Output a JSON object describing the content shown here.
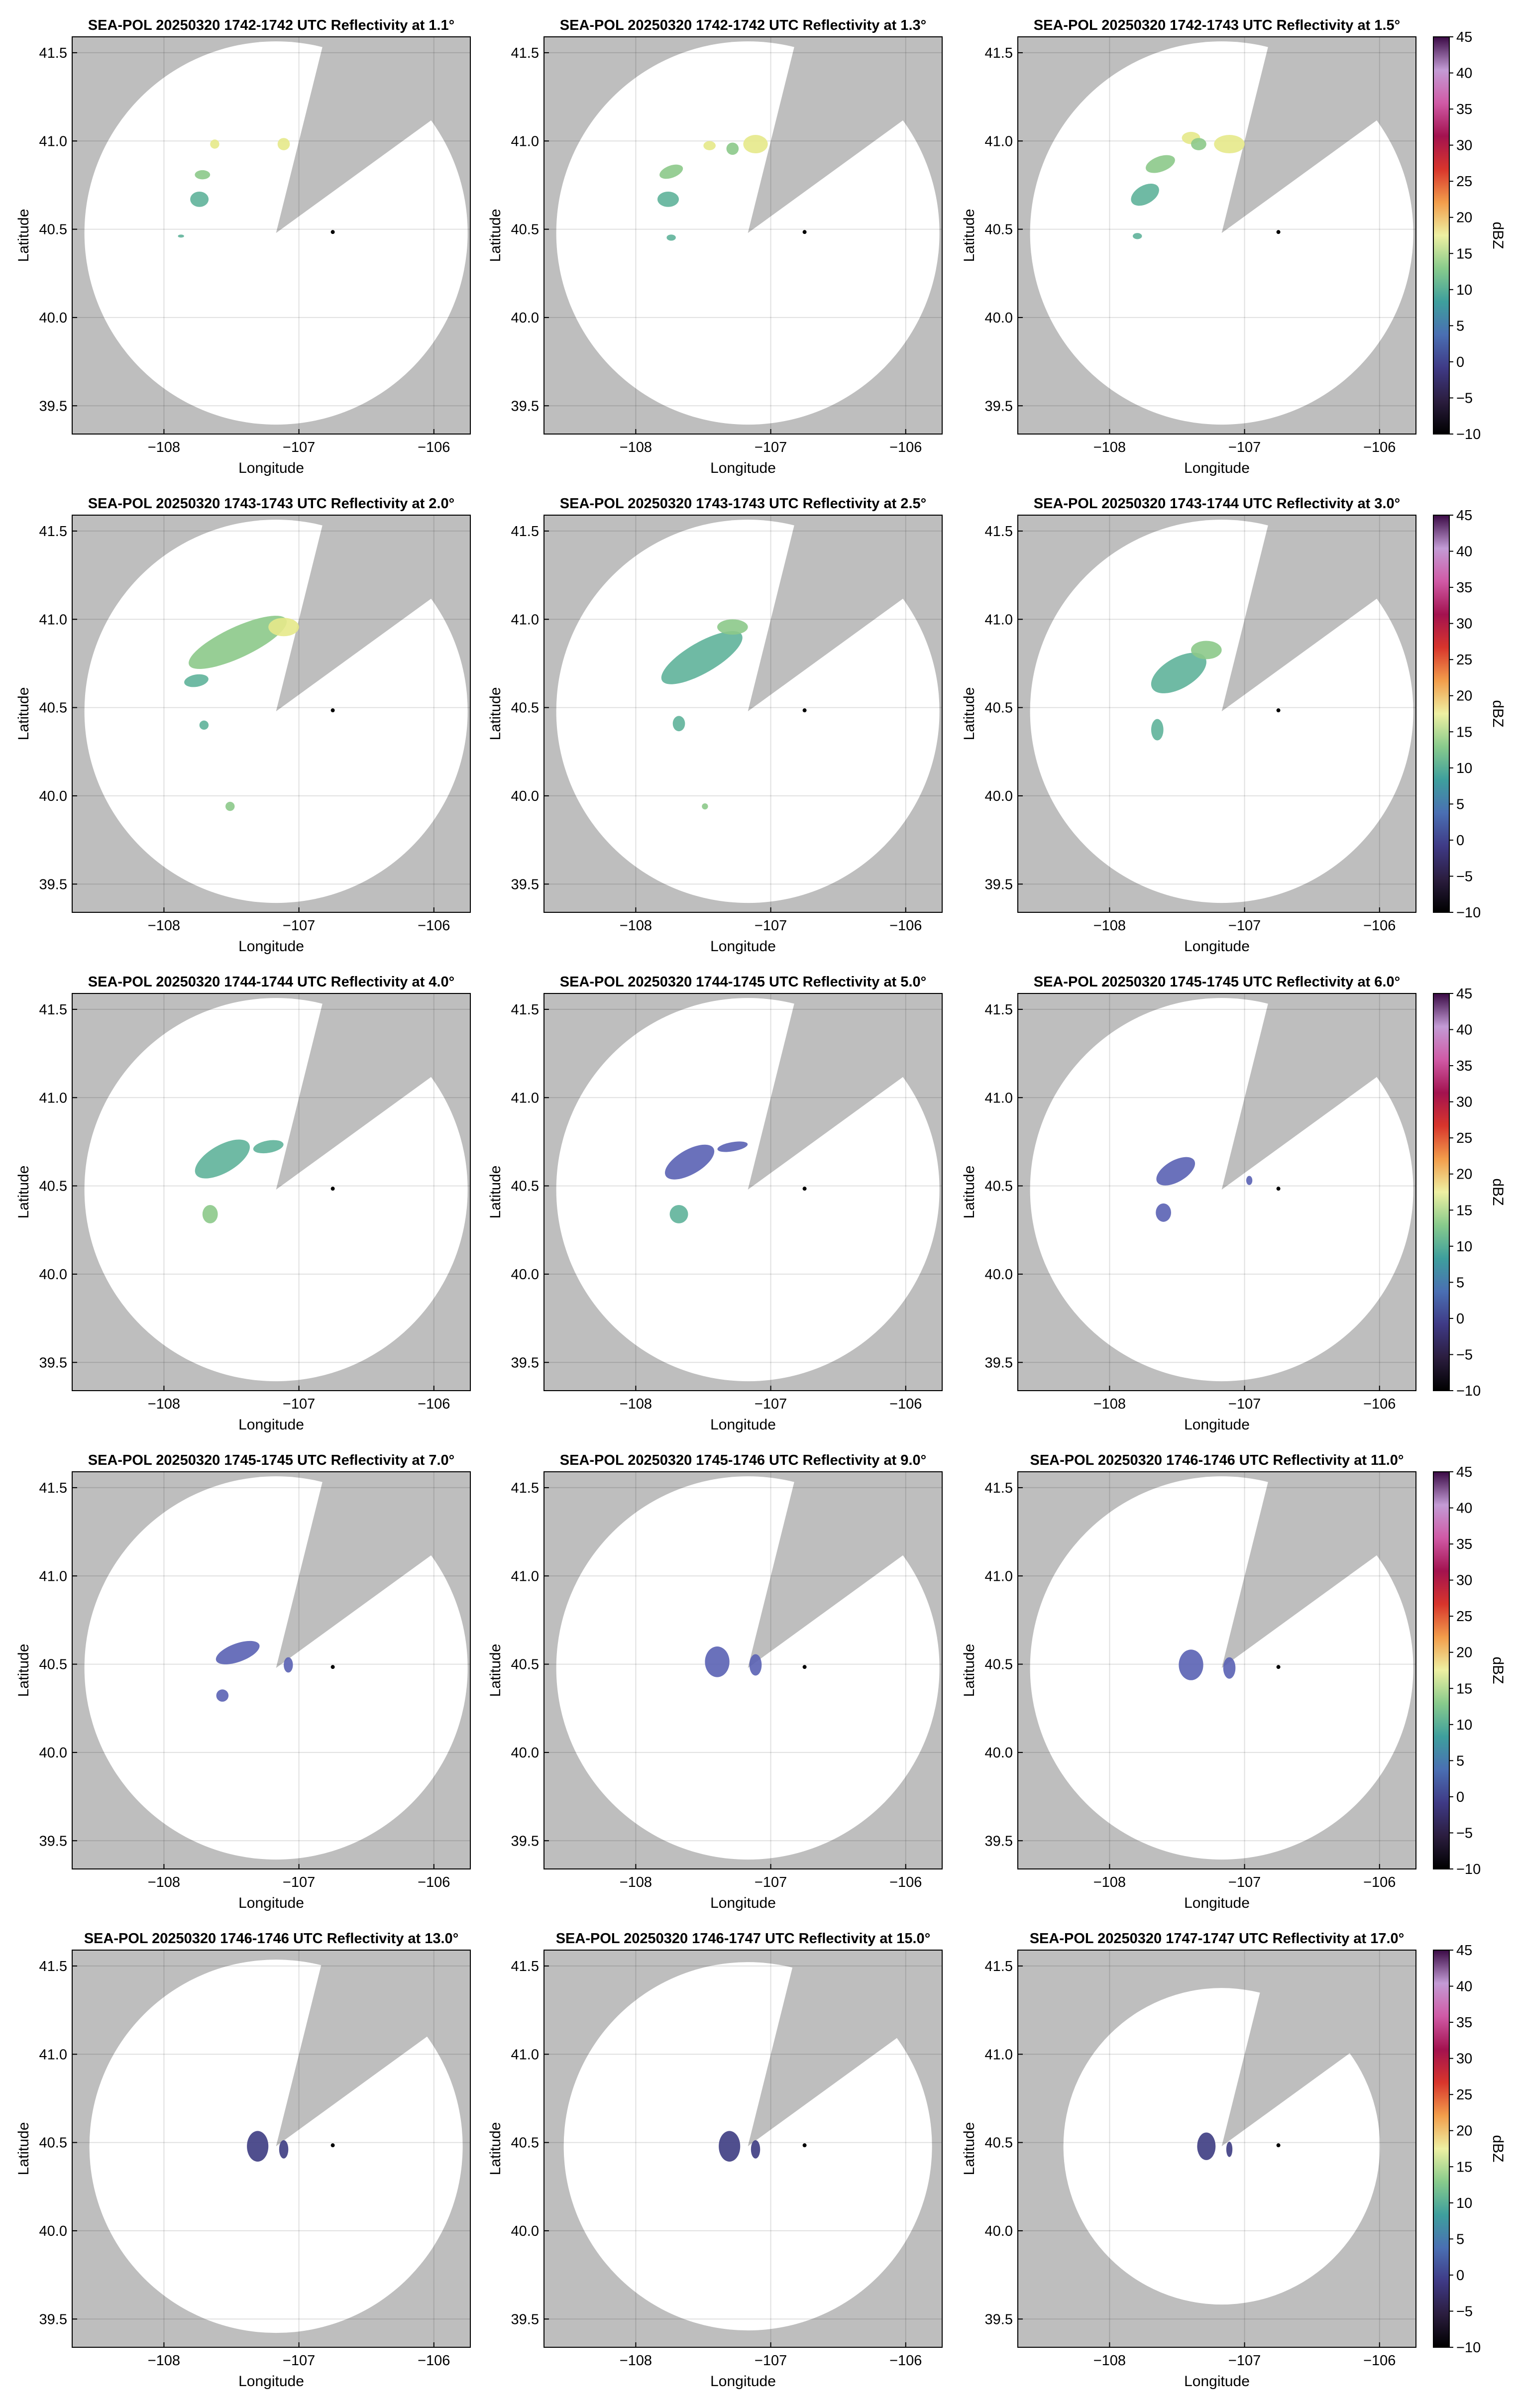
{
  "chart_data": [
    {
      "type": "ppi",
      "title": "SEA-POL 20250320 1742-1742 UTC Reflectivity at 1.1°",
      "xlabel": "Longitude",
      "ylabel": "Latitude",
      "xlim": [
        -108.68,
        -105.73
      ],
      "ylim": [
        39.34,
        41.59
      ],
      "xticks": [
        {
          "value": -108,
          "label": "−108"
        },
        {
          "value": -107,
          "label": "−107"
        },
        {
          "value": -106,
          "label": "−106"
        }
      ],
      "yticks": [
        39.5,
        {
          "value": 40,
          "label": "40.0"
        },
        40.5,
        {
          "value": 41,
          "label": "41.0"
        },
        41.5
      ],
      "grid": true
    },
    {
      "type": "ppi",
      "title": "SEA-POL 20250320 1742-1742 UTC Reflectivity at 1.3°",
      "xlabel": "Longitude",
      "ylabel": "Latitude",
      "xlim": [
        -108.68,
        -105.73
      ],
      "ylim": [
        39.34,
        41.59
      ],
      "xticks": [
        {
          "value": -108,
          "label": "−108"
        },
        {
          "value": -107,
          "label": "−107"
        },
        {
          "value": -106,
          "label": "−106"
        }
      ],
      "yticks": [
        39.5,
        {
          "value": 40,
          "label": "40.0"
        },
        40.5,
        {
          "value": 41,
          "label": "41.0"
        },
        41.5
      ],
      "grid": true
    },
    {
      "type": "ppi",
      "title": "SEA-POL 20250320 1742-1743 UTC Reflectivity at 1.5°",
      "xlabel": "Longitude",
      "ylabel": "Latitude",
      "xlim": [
        -108.68,
        -105.73
      ],
      "ylim": [
        39.34,
        41.59
      ],
      "xticks": [
        {
          "value": -108,
          "label": "−108"
        },
        {
          "value": -107,
          "label": "−107"
        },
        {
          "value": -106,
          "label": "−106"
        }
      ],
      "yticks": [
        39.5,
        {
          "value": 40,
          "label": "40.0"
        },
        40.5,
        {
          "value": 41,
          "label": "41.0"
        },
        41.5
      ],
      "grid": true,
      "colorbar": {
        "label": "dBZ",
        "lim": [
          -10,
          45
        ],
        "ticks": [
          {
            "value": -10,
            "label": "−10"
          },
          {
            "value": -5,
            "label": "−5"
          },
          0,
          5,
          10,
          15,
          20,
          25,
          30,
          35,
          40,
          45
        ],
        "colors": [
          "#000000",
          "#2b1d3f",
          "#3f3a86",
          "#4a6fb3",
          "#3e9f9d",
          "#88cb8c",
          "#eef0a2",
          "#f29d4b",
          "#d8352c",
          "#a3124f",
          "#d05aa6",
          "#c39bd5",
          "#3a0a45"
        ]
      }
    },
    {
      "type": "ppi",
      "title": "SEA-POL 20250320 1743-1743 UTC Reflectivity at 2.0°",
      "xlabel": "Longitude",
      "ylabel": "Latitude",
      "xlim": [
        -108.68,
        -105.73
      ],
      "ylim": [
        39.34,
        41.59
      ],
      "xticks": [
        {
          "value": -108,
          "label": "−108"
        },
        {
          "value": -107,
          "label": "−107"
        },
        {
          "value": -106,
          "label": "−106"
        }
      ],
      "yticks": [
        39.5,
        {
          "value": 40,
          "label": "40.0"
        },
        40.5,
        {
          "value": 41,
          "label": "41.0"
        },
        41.5
      ],
      "grid": true
    },
    {
      "type": "ppi",
      "title": "SEA-POL 20250320 1743-1743 UTC Reflectivity at 2.5°",
      "xlabel": "Longitude",
      "ylabel": "Latitude",
      "xlim": [
        -108.68,
        -105.73
      ],
      "ylim": [
        39.34,
        41.59
      ],
      "xticks": [
        {
          "value": -108,
          "label": "−108"
        },
        {
          "value": -107,
          "label": "−107"
        },
        {
          "value": -106,
          "label": "−106"
        }
      ],
      "yticks": [
        39.5,
        {
          "value": 40,
          "label": "40.0"
        },
        40.5,
        {
          "value": 41,
          "label": "41.0"
        },
        41.5
      ],
      "grid": true
    },
    {
      "type": "ppi",
      "title": "SEA-POL 20250320 1743-1744 UTC Reflectivity at 3.0°",
      "xlabel": "Longitude",
      "ylabel": "Latitude",
      "xlim": [
        -108.68,
        -105.73
      ],
      "ylim": [
        39.34,
        41.59
      ],
      "xticks": [
        {
          "value": -108,
          "label": "−108"
        },
        {
          "value": -107,
          "label": "−107"
        },
        {
          "value": -106,
          "label": "−106"
        }
      ],
      "yticks": [
        39.5,
        {
          "value": 40,
          "label": "40.0"
        },
        40.5,
        {
          "value": 41,
          "label": "41.0"
        },
        41.5
      ],
      "grid": true,
      "colorbar": {
        "label": "dBZ",
        "lim": [
          -10,
          45
        ],
        "ticks": [
          {
            "value": -10,
            "label": "−10"
          },
          {
            "value": -5,
            "label": "−5"
          },
          0,
          5,
          10,
          15,
          20,
          25,
          30,
          35,
          40,
          45
        ],
        "colors": [
          "#000000",
          "#2b1d3f",
          "#3f3a86",
          "#4a6fb3",
          "#3e9f9d",
          "#88cb8c",
          "#eef0a2",
          "#f29d4b",
          "#d8352c",
          "#a3124f",
          "#d05aa6",
          "#c39bd5",
          "#3a0a45"
        ]
      }
    },
    {
      "type": "ppi",
      "title": "SEA-POL 20250320 1744-1744 UTC Reflectivity at 4.0°",
      "xlabel": "Longitude",
      "ylabel": "Latitude",
      "xlim": [
        -108.68,
        -105.73
      ],
      "ylim": [
        39.34,
        41.59
      ],
      "xticks": [
        {
          "value": -108,
          "label": "−108"
        },
        {
          "value": -107,
          "label": "−107"
        },
        {
          "value": -106,
          "label": "−106"
        }
      ],
      "yticks": [
        39.5,
        {
          "value": 40,
          "label": "40.0"
        },
        40.5,
        {
          "value": 41,
          "label": "41.0"
        },
        41.5
      ],
      "grid": true
    },
    {
      "type": "ppi",
      "title": "SEA-POL 20250320 1744-1745 UTC Reflectivity at 5.0°",
      "xlabel": "Longitude",
      "ylabel": "Latitude",
      "xlim": [
        -108.68,
        -105.73
      ],
      "ylim": [
        39.34,
        41.59
      ],
      "xticks": [
        {
          "value": -108,
          "label": "−108"
        },
        {
          "value": -107,
          "label": "−107"
        },
        {
          "value": -106,
          "label": "−106"
        }
      ],
      "yticks": [
        39.5,
        {
          "value": 40,
          "label": "40.0"
        },
        40.5,
        {
          "value": 41,
          "label": "41.0"
        },
        41.5
      ],
      "grid": true
    },
    {
      "type": "ppi",
      "title": "SEA-POL 20250320 1745-1745 UTC Reflectivity at 6.0°",
      "xlabel": "Longitude",
      "ylabel": "Latitude",
      "xlim": [
        -108.68,
        -105.73
      ],
      "ylim": [
        39.34,
        41.59
      ],
      "xticks": [
        {
          "value": -108,
          "label": "−108"
        },
        {
          "value": -107,
          "label": "−107"
        },
        {
          "value": -106,
          "label": "−106"
        }
      ],
      "yticks": [
        39.5,
        {
          "value": 40,
          "label": "40.0"
        },
        40.5,
        {
          "value": 41,
          "label": "41.0"
        },
        41.5
      ],
      "grid": true,
      "colorbar": {
        "label": "dBZ",
        "lim": [
          -10,
          45
        ],
        "ticks": [
          {
            "value": -10,
            "label": "−10"
          },
          {
            "value": -5,
            "label": "−5"
          },
          0,
          5,
          10,
          15,
          20,
          25,
          30,
          35,
          40,
          45
        ],
        "colors": [
          "#000000",
          "#2b1d3f",
          "#3f3a86",
          "#4a6fb3",
          "#3e9f9d",
          "#88cb8c",
          "#eef0a2",
          "#f29d4b",
          "#d8352c",
          "#a3124f",
          "#d05aa6",
          "#c39bd5",
          "#3a0a45"
        ]
      }
    },
    {
      "type": "ppi",
      "title": "SEA-POL 20250320 1745-1745 UTC Reflectivity at 7.0°",
      "xlabel": "Longitude",
      "ylabel": "Latitude",
      "xlim": [
        -108.68,
        -105.73
      ],
      "ylim": [
        39.34,
        41.59
      ],
      "xticks": [
        {
          "value": -108,
          "label": "−108"
        },
        {
          "value": -107,
          "label": "−107"
        },
        {
          "value": -106,
          "label": "−106"
        }
      ],
      "yticks": [
        39.5,
        {
          "value": 40,
          "label": "40.0"
        },
        40.5,
        {
          "value": 41,
          "label": "41.0"
        },
        41.5
      ],
      "grid": true
    },
    {
      "type": "ppi",
      "title": "SEA-POL 20250320 1745-1746 UTC Reflectivity at 9.0°",
      "xlabel": "Longitude",
      "ylabel": "Latitude",
      "xlim": [
        -108.68,
        -105.73
      ],
      "ylim": [
        39.34,
        41.59
      ],
      "xticks": [
        {
          "value": -108,
          "label": "−108"
        },
        {
          "value": -107,
          "label": "−107"
        },
        {
          "value": -106,
          "label": "−106"
        }
      ],
      "yticks": [
        39.5,
        {
          "value": 40,
          "label": "40.0"
        },
        40.5,
        {
          "value": 41,
          "label": "41.0"
        },
        41.5
      ],
      "grid": true
    },
    {
      "type": "ppi",
      "title": "SEA-POL 20250320 1746-1746 UTC Reflectivity at 11.0°",
      "xlabel": "Longitude",
      "ylabel": "Latitude",
      "xlim": [
        -108.68,
        -105.73
      ],
      "ylim": [
        39.34,
        41.59
      ],
      "xticks": [
        {
          "value": -108,
          "label": "−108"
        },
        {
          "value": -107,
          "label": "−107"
        },
        {
          "value": -106,
          "label": "−106"
        }
      ],
      "yticks": [
        39.5,
        {
          "value": 40,
          "label": "40.0"
        },
        40.5,
        {
          "value": 41,
          "label": "41.0"
        },
        41.5
      ],
      "grid": true,
      "colorbar": {
        "label": "dBZ",
        "lim": [
          -10,
          45
        ],
        "ticks": [
          {
            "value": -10,
            "label": "−10"
          },
          {
            "value": -5,
            "label": "−5"
          },
          0,
          5,
          10,
          15,
          20,
          25,
          30,
          35,
          40,
          45
        ],
        "colors": [
          "#000000",
          "#2b1d3f",
          "#3f3a86",
          "#4a6fb3",
          "#3e9f9d",
          "#88cb8c",
          "#eef0a2",
          "#f29d4b",
          "#d8352c",
          "#a3124f",
          "#d05aa6",
          "#c39bd5",
          "#3a0a45"
        ]
      }
    },
    {
      "type": "ppi",
      "title": "SEA-POL 20250320 1746-1746 UTC Reflectivity at 13.0°",
      "xlabel": "Longitude",
      "ylabel": "Latitude",
      "xlim": [
        -108.68,
        -105.73
      ],
      "ylim": [
        39.34,
        41.59
      ],
      "xticks": [
        {
          "value": -108,
          "label": "−108"
        },
        {
          "value": -107,
          "label": "−107"
        },
        {
          "value": -106,
          "label": "−106"
        }
      ],
      "yticks": [
        39.5,
        {
          "value": 40,
          "label": "40.0"
        },
        40.5,
        {
          "value": 41,
          "label": "41.0"
        },
        41.5
      ],
      "grid": true
    },
    {
      "type": "ppi",
      "title": "SEA-POL 20250320 1746-1747 UTC Reflectivity at 15.0°",
      "xlabel": "Longitude",
      "ylabel": "Latitude",
      "xlim": [
        -108.68,
        -105.73
      ],
      "ylim": [
        39.34,
        41.59
      ],
      "xticks": [
        {
          "value": -108,
          "label": "−108"
        },
        {
          "value": -107,
          "label": "−107"
        },
        {
          "value": -106,
          "label": "−106"
        }
      ],
      "yticks": [
        39.5,
        {
          "value": 40,
          "label": "40.0"
        },
        40.5,
        {
          "value": 41,
          "label": "41.0"
        },
        41.5
      ],
      "grid": true
    },
    {
      "type": "ppi",
      "title": "SEA-POL 20250320 1747-1747 UTC Reflectivity at 17.0°",
      "xlabel": "Longitude",
      "ylabel": "Latitude",
      "xlim": [
        -108.68,
        -105.73
      ],
      "ylim": [
        39.34,
        41.59
      ],
      "xticks": [
        {
          "value": -108,
          "label": "−108"
        },
        {
          "value": -107,
          "label": "−107"
        },
        {
          "value": -106,
          "label": "−106"
        }
      ],
      "yticks": [
        39.5,
        {
          "value": 40,
          "label": "40.0"
        },
        40.5,
        {
          "value": 41,
          "label": "41.0"
        },
        41.5
      ],
      "grid": true,
      "colorbar": {
        "label": "dBZ",
        "lim": [
          -10,
          45
        ],
        "ticks": [
          {
            "value": -10,
            "label": "−10"
          },
          {
            "value": -5,
            "label": "−5"
          },
          0,
          5,
          10,
          15,
          20,
          25,
          30,
          35,
          40,
          45
        ],
        "colors": [
          "#000000",
          "#2b1d3f",
          "#3f3a86",
          "#4a6fb3",
          "#3e9f9d",
          "#88cb8c",
          "#eef0a2",
          "#f29d4b",
          "#d8352c",
          "#a3124f",
          "#d05aa6",
          "#c39bd5",
          "#3a0a45"
        ]
      }
    }
  ]
}
